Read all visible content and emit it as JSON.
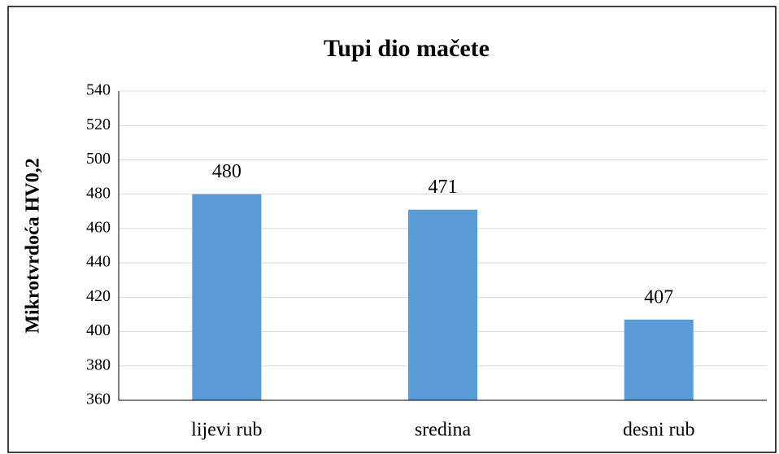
{
  "chart_data": {
    "type": "bar",
    "title": "Tupi dio mačete",
    "y_label": "Mikrotvrdoća HV0,2",
    "categories": [
      "lijevi rub",
      "sredina",
      "desni rub"
    ],
    "values": [
      480,
      471,
      407
    ],
    "color": "#5b9bd5",
    "ylim": [
      360,
      540
    ],
    "yticks": [
      360,
      380,
      400,
      420,
      440,
      460,
      480,
      500,
      520,
      540
    ],
    "grid": true
  }
}
